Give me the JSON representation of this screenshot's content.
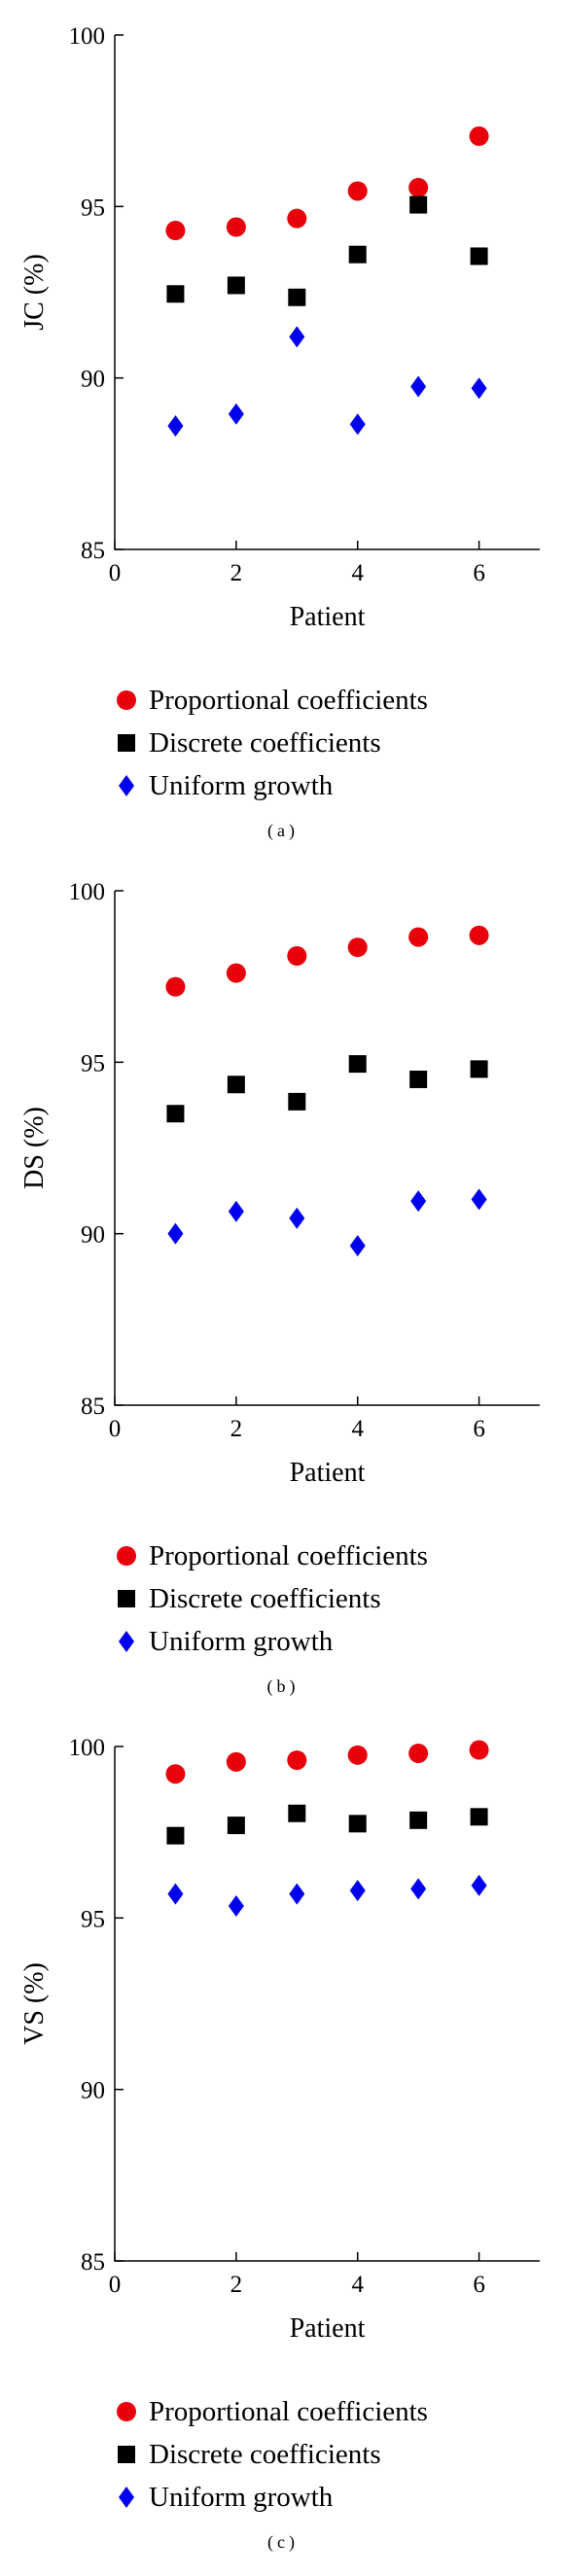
{
  "chart_data": [
    {
      "type": "scatter",
      "panel_label": "(a)",
      "xlabel": "Patient",
      "ylabel": "JC (%)",
      "xlim": [
        0,
        7
      ],
      "ylim": [
        85,
        100
      ],
      "xticks": [
        0,
        2,
        4,
        6
      ],
      "yticks": [
        85,
        90,
        95,
        100
      ],
      "grid": false,
      "legend_position": "below",
      "x": [
        1,
        2,
        3,
        4,
        5,
        6
      ],
      "series": [
        {
          "name": "Proportional coefficients",
          "marker": "circle",
          "color": "#e8000b",
          "values": [
            94.3,
            94.4,
            94.65,
            95.45,
            95.55,
            97.05
          ]
        },
        {
          "name": "Discrete coefficients",
          "marker": "square",
          "color": "#000000",
          "values": [
            92.45,
            92.7,
            92.35,
            93.6,
            95.05,
            93.55
          ]
        },
        {
          "name": "Uniform growth",
          "marker": "diamond",
          "color": "#0000ee",
          "values": [
            88.6,
            88.95,
            91.2,
            88.65,
            89.75,
            89.7
          ]
        }
      ]
    },
    {
      "type": "scatter",
      "panel_label": "(b)",
      "xlabel": "Patient",
      "ylabel": "DS (%)",
      "xlim": [
        0,
        7
      ],
      "ylim": [
        85,
        100
      ],
      "xticks": [
        0,
        2,
        4,
        6
      ],
      "yticks": [
        85,
        90,
        95,
        100
      ],
      "grid": false,
      "legend_position": "below",
      "x": [
        1,
        2,
        3,
        4,
        5,
        6
      ],
      "series": [
        {
          "name": "Proportional coefficients",
          "marker": "circle",
          "color": "#e8000b",
          "values": [
            97.2,
            97.6,
            98.1,
            98.35,
            98.65,
            98.7
          ]
        },
        {
          "name": "Discrete coefficients",
          "marker": "square",
          "color": "#000000",
          "values": [
            93.5,
            94.35,
            93.85,
            94.95,
            94.5,
            94.8
          ]
        },
        {
          "name": "Uniform growth",
          "marker": "diamond",
          "color": "#0000ee",
          "values": [
            90.0,
            90.65,
            90.45,
            89.65,
            90.95,
            91.0
          ]
        }
      ]
    },
    {
      "type": "scatter",
      "panel_label": "(c)",
      "xlabel": "Patient",
      "ylabel": "VS (%)",
      "xlim": [
        0,
        7
      ],
      "ylim": [
        85,
        100
      ],
      "xticks": [
        0,
        2,
        4,
        6
      ],
      "yticks": [
        85,
        90,
        95,
        100
      ],
      "grid": false,
      "legend_position": "below",
      "x": [
        1,
        2,
        3,
        4,
        5,
        6
      ],
      "series": [
        {
          "name": "Proportional coefficients",
          "marker": "circle",
          "color": "#e8000b",
          "values": [
            99.2,
            99.55,
            99.6,
            99.75,
            99.8,
            99.9
          ]
        },
        {
          "name": "Discrete coefficients",
          "marker": "square",
          "color": "#000000",
          "values": [
            97.4,
            97.7,
            98.05,
            97.75,
            97.85,
            97.95
          ]
        },
        {
          "name": "Uniform growth",
          "marker": "diamond",
          "color": "#0000ee",
          "values": [
            95.7,
            95.35,
            95.7,
            95.8,
            95.85,
            95.95
          ]
        }
      ]
    }
  ]
}
